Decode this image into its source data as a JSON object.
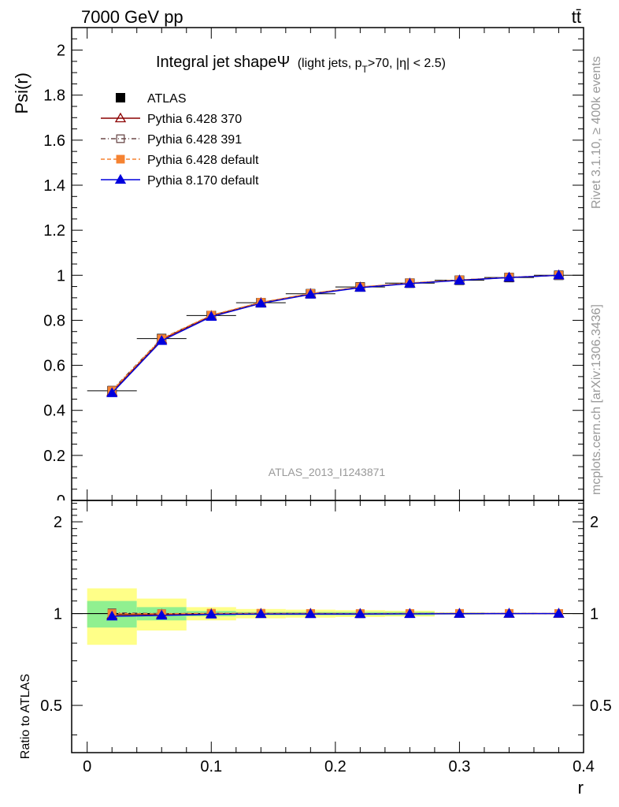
{
  "header": {
    "left_label": "7000 GeV pp",
    "right_label": "tt̄"
  },
  "side_texts": {
    "rivet": "Rivet 3.1.10, ≥ 400k events",
    "mcplots": "mcplots.cern.ch [arXiv:1306.3436]"
  },
  "chart_data": {
    "type": "line",
    "title_main": "Integral jet shape",
    "title_symbol": "Ψ",
    "title_detail_pre": "(light jets, p",
    "title_detail_sub": "T",
    "title_detail_post": ">70, |η| < 2.5)",
    "analysis_label": "ATLAS_2013_I1243871",
    "xlabel": "r",
    "ylabel": "Psi(r)",
    "ratio_ylabel": "Ratio to ATLAS",
    "xlim": [
      -0.0125,
      0.4
    ],
    "ylim": [
      0,
      2.1
    ],
    "ratio_ylim": [
      0.35,
      2.35
    ],
    "ratio_log": true,
    "x_ticks": [
      0,
      0.1,
      0.2,
      0.3,
      0.4
    ],
    "x_tick_labels": [
      "0",
      "0.1",
      "0.2",
      "0.3",
      "0.4"
    ],
    "y_ticks": [
      0.2,
      0.4,
      0.6,
      0.8,
      1,
      1.2,
      1.4,
      1.6,
      1.8,
      2
    ],
    "y_tick_labels": [
      "0.2",
      "0.4",
      "0.6",
      "0.8",
      "1",
      "1.2",
      "1.4",
      "1.6",
      "1.8",
      "2"
    ],
    "y_zero_label": "0",
    "ratio_ticks": [
      0.5,
      1,
      2
    ],
    "ratio_tick_labels": [
      "0.5",
      "1",
      "2"
    ],
    "x": [
      0.02,
      0.06,
      0.1,
      0.14,
      0.18,
      0.22,
      0.26,
      0.3,
      0.34,
      0.38
    ],
    "bin_edges": [
      0,
      0.04,
      0.08,
      0.12,
      0.16,
      0.2,
      0.24,
      0.28,
      0.32,
      0.36,
      0.4
    ],
    "data": {
      "name": "ATLAS",
      "values": [
        0.487,
        0.719,
        0.821,
        0.878,
        0.918,
        0.948,
        0.965,
        0.978,
        0.99,
        1.0
      ],
      "band_inner": [
        0.1,
        0.05,
        0.02,
        0.012,
        0.012,
        0.012,
        0.012,
        0.006,
        0.004,
        0.002
      ],
      "band_outer": [
        0.21,
        0.12,
        0.05,
        0.035,
        0.03,
        0.026,
        0.022,
        0.008,
        0.005,
        0.003
      ]
    },
    "series": [
      {
        "name": "Pythia 6.428 370",
        "color": "#8b0000",
        "marker": "open-triangle",
        "dash": "",
        "values": [
          0.482,
          0.715,
          0.82,
          0.878,
          0.918,
          0.947,
          0.964,
          0.978,
          0.99,
          1.0
        ]
      },
      {
        "name": "Pythia 6.428 391",
        "color": "#6b4a4a",
        "marker": "open-square",
        "dash": "6,3,1,3",
        "values": [
          0.49,
          0.719,
          0.822,
          0.879,
          0.918,
          0.947,
          0.965,
          0.979,
          0.991,
          1.0
        ]
      },
      {
        "name": "Pythia 6.428 default",
        "color": "#f58231",
        "marker": "filled-square",
        "dash": "5,3",
        "values": [
          0.487,
          0.718,
          0.823,
          0.88,
          0.919,
          0.948,
          0.966,
          0.979,
          0.991,
          1.0
        ]
      },
      {
        "name": "Pythia 8.170 default",
        "color": "#0000dd",
        "marker": "filled-triangle",
        "dash": "",
        "values": [
          0.477,
          0.709,
          0.816,
          0.875,
          0.915,
          0.945,
          0.963,
          0.977,
          0.99,
          1.0
        ]
      }
    ],
    "colors": {
      "inner_band": "#90f090",
      "outer_band": "#ffff88",
      "data_marker": "#000000",
      "annotation": "#999999"
    }
  }
}
